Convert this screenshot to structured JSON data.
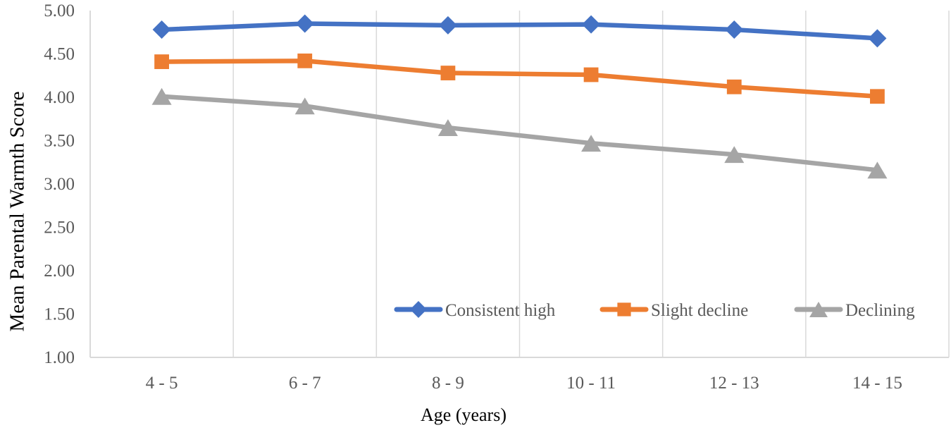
{
  "chart_data": {
    "type": "line",
    "title": "",
    "xlabel": "Age (years)",
    "ylabel": "Mean Parental Warmth Score",
    "categories": [
      "4 - 5",
      "6 - 7",
      "8 - 9",
      "10 - 11",
      "12 - 13",
      "14 - 15"
    ],
    "series": [
      {
        "name": "Consistent high",
        "color": "#4472C4",
        "marker": "diamond",
        "values": [
          4.78,
          4.85,
          4.83,
          4.84,
          4.78,
          4.68
        ]
      },
      {
        "name": "Slight decline",
        "color": "#ED7D31",
        "marker": "square",
        "values": [
          4.41,
          4.42,
          4.28,
          4.26,
          4.12,
          4.01
        ]
      },
      {
        "name": "Declining",
        "color": "#A5A5A5",
        "marker": "triangle",
        "values": [
          4.01,
          3.9,
          3.65,
          3.47,
          3.34,
          3.16
        ]
      }
    ],
    "ylim": [
      1.0,
      5.0
    ],
    "ytick_step": 0.5,
    "ytick_labels": [
      "5.00",
      "4.50",
      "4.00",
      "3.50",
      "3.00",
      "2.50",
      "2.00",
      "1.50",
      "1.00"
    ],
    "grid": "vertical-only",
    "legend_position": "inside-bottom-right-row",
    "colors": {
      "axis_line": "#D9D9D9",
      "gridline": "#D9D9D9",
      "tick_text": "#595959",
      "legend_text": "#595959",
      "axis_title_text": "#000000",
      "background": "#FFFFFF"
    }
  }
}
